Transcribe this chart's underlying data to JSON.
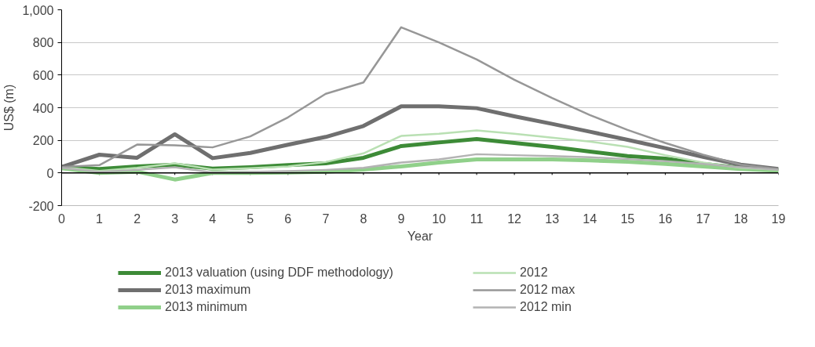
{
  "chart_data": {
    "type": "line",
    "xlabel": "Year",
    "ylabel": "US$ (m)",
    "x": [
      0,
      1,
      2,
      3,
      4,
      5,
      6,
      7,
      8,
      9,
      10,
      11,
      12,
      13,
      14,
      15,
      16,
      17,
      18,
      19
    ],
    "xlim": [
      0,
      19
    ],
    "xticks": [
      0,
      1,
      2,
      3,
      4,
      5,
      6,
      7,
      8,
      9,
      10,
      11,
      12,
      13,
      14,
      15,
      16,
      17,
      18,
      19
    ],
    "ylim": [
      -200,
      1000
    ],
    "yticks": [
      {
        "value": -200,
        "label": "-200"
      },
      {
        "value": 0,
        "label": "0"
      },
      {
        "value": 200,
        "label": "200"
      },
      {
        "value": 400,
        "label": "400"
      },
      {
        "value": 600,
        "label": "600"
      },
      {
        "value": 800,
        "label": "800"
      },
      {
        "value": 1000,
        "label": "1,000"
      }
    ],
    "grid": "y",
    "legend": "bottom",
    "marker": "none",
    "line_style": "solid",
    "ref_lines": [
      {
        "axis": "y",
        "value": 0,
        "color": "#000000"
      }
    ],
    "series": [
      {
        "name": "2013 valuation (using DDF methodology)",
        "color": "#3d8b37",
        "values": [
          37,
          24,
          40,
          51,
          27,
          35,
          48,
          59,
          93,
          165,
          187,
          208,
          184,
          160,
          131,
          104,
          88,
          56,
          32,
          19
        ]
      },
      {
        "name": "2013 maximum",
        "color": "#6f6f6f",
        "values": [
          37,
          112,
          93,
          237,
          91,
          123,
          173,
          221,
          288,
          408,
          408,
          397,
          347,
          301,
          253,
          203,
          152,
          99,
          51,
          24
        ]
      },
      {
        "name": "2013 minimum",
        "color": "#90d08a",
        "values": [
          29,
          0,
          8,
          -40,
          0,
          0,
          3,
          8,
          21,
          40,
          64,
          83,
          83,
          83,
          77,
          69,
          56,
          40,
          24,
          13
        ]
      },
      {
        "name": "2012",
        "color": "#b9e0b3",
        "values": [
          37,
          13,
          32,
          59,
          21,
          29,
          40,
          67,
          120,
          227,
          240,
          261,
          240,
          216,
          192,
          160,
          109,
          64,
          32,
          19
        ]
      },
      {
        "name": "2012 max",
        "color": "#979797",
        "values": [
          37,
          48,
          174,
          170,
          157,
          224,
          341,
          485,
          555,
          893,
          800,
          696,
          571,
          459,
          355,
          264,
          184,
          112,
          51,
          24
        ]
      },
      {
        "name": "2012 min",
        "color": "#b3b3b3",
        "values": [
          32,
          6,
          19,
          35,
          3,
          6,
          11,
          19,
          32,
          64,
          83,
          115,
          109,
          104,
          96,
          85,
          72,
          56,
          35,
          19
        ]
      }
    ]
  }
}
